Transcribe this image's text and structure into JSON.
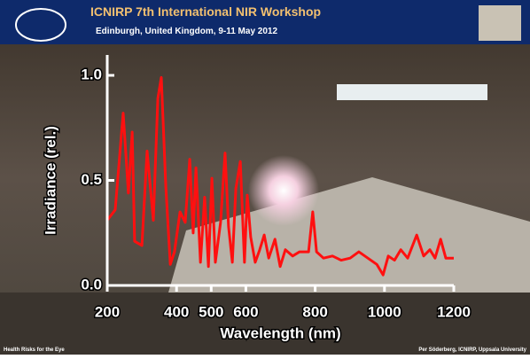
{
  "header": {
    "title": "ICNIRP 7th International NIR Workshop",
    "subtitle": "Edinburgh, United Kingdom, 9-11 May 2012"
  },
  "footer": {
    "left": "Health Risks for the Eye",
    "right": "Per Söderberg, ICNIRP, Uppsala University"
  },
  "chart_data": {
    "type": "line",
    "x_label": "Wavelength (nm)",
    "y_label": "Irradiance (rel.)",
    "xlim": [
      200,
      1200
    ],
    "ylim": [
      0,
      1
    ],
    "xticks": [
      200,
      400,
      500,
      600,
      800,
      1000,
      1200
    ],
    "yticks": [
      {
        "value": 0,
        "label": "0.0"
      },
      {
        "value": 0.5,
        "label": "0.5"
      },
      {
        "value": 1,
        "label": "1.0"
      }
    ],
    "series": [
      {
        "color": "#ff1010",
        "x": [
          200,
          223,
          246,
          261,
          272,
          279,
          300,
          315,
          333,
          346,
          356,
          369,
          382,
          394,
          410,
          425,
          438,
          448,
          456,
          469,
          481,
          492,
          502,
          512,
          527,
          540,
          550,
          561,
          571,
          584,
          596,
          604,
          614,
          627,
          640,
          653,
          666,
          684,
          699,
          714,
          735,
          755,
          781,
          793,
          804,
          824,
          850,
          875,
          901,
          926,
          952,
          978,
          996,
          1011,
          1029,
          1047,
          1067,
          1093,
          1113,
          1131,
          1146,
          1162,
          1177,
          1200
        ],
        "values": [
          0.31,
          0.36,
          0.82,
          0.44,
          0.73,
          0.21,
          0.19,
          0.64,
          0.31,
          0.89,
          0.99,
          0.47,
          0.1,
          0.16,
          0.35,
          0.3,
          0.6,
          0.25,
          0.56,
          0.11,
          0.42,
          0.09,
          0.51,
          0.11,
          0.3,
          0.63,
          0.28,
          0.11,
          0.46,
          0.59,
          0.11,
          0.43,
          0.23,
          0.11,
          0.17,
          0.24,
          0.13,
          0.22,
          0.09,
          0.17,
          0.14,
          0.16,
          0.16,
          0.35,
          0.16,
          0.13,
          0.14,
          0.12,
          0.13,
          0.16,
          0.13,
          0.1,
          0.05,
          0.14,
          0.12,
          0.17,
          0.13,
          0.24,
          0.14,
          0.17,
          0.13,
          0.22,
          0.13,
          0.13
        ]
      }
    ]
  }
}
